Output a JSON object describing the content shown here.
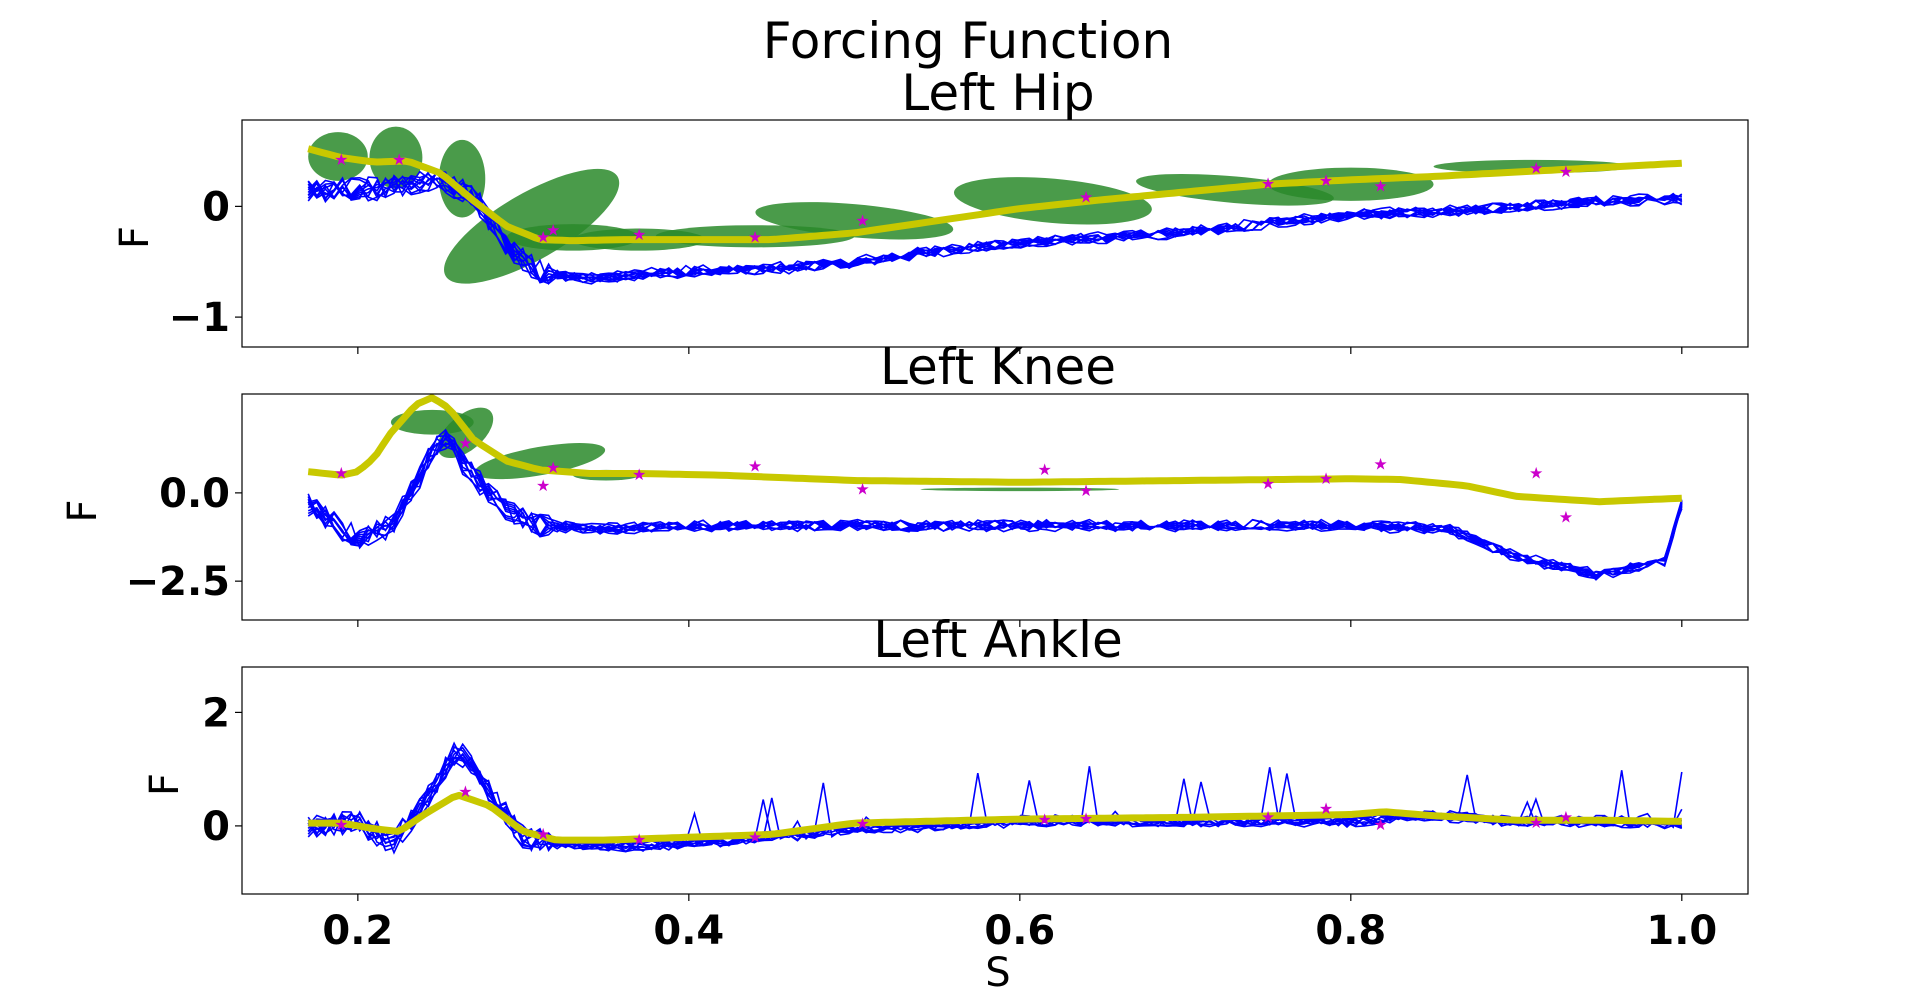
{
  "figure_title": "Forcing Function",
  "chart_data": [
    {
      "type": "line",
      "title": "Left Hip",
      "ylabel": "F",
      "xlabel": "",
      "xlim": [
        0.13,
        1.04
      ],
      "ylim": [
        -1.27,
        0.78
      ],
      "yticks": [
        0,
        -1
      ],
      "ytick_labels": [
        "0",
        "−1"
      ],
      "xticks": [
        0.2,
        0.4,
        0.6,
        0.8,
        1.0
      ],
      "xtick_labels": [],
      "colors": {
        "demos": "#0000ff",
        "mean": "#c8c800",
        "stars": "#cc00cc",
        "ellipses": "#2a8a2a"
      },
      "mean_curve": {
        "x": [
          0.17,
          0.19,
          0.21,
          0.23,
          0.25,
          0.27,
          0.29,
          0.31,
          0.33,
          0.36,
          0.4,
          0.45,
          0.5,
          0.55,
          0.6,
          0.65,
          0.7,
          0.75,
          0.8,
          0.85,
          0.9,
          0.95,
          1.0
        ],
        "y": [
          0.52,
          0.44,
          0.4,
          0.41,
          0.3,
          0.05,
          -0.18,
          -0.3,
          -0.31,
          -0.3,
          -0.3,
          -0.3,
          -0.24,
          -0.13,
          -0.02,
          0.06,
          0.13,
          0.2,
          0.24,
          0.27,
          0.31,
          0.35,
          0.39
        ]
      },
      "demo_baseline": {
        "x": [
          0.17,
          0.2,
          0.23,
          0.25,
          0.27,
          0.29,
          0.31,
          0.34,
          0.38,
          0.42,
          0.46,
          0.5,
          0.55,
          0.6,
          0.65,
          0.7,
          0.75,
          0.8,
          0.85,
          0.9,
          0.95,
          1.0
        ],
        "y": [
          0.1,
          0.1,
          0.15,
          0.2,
          0.05,
          -0.4,
          -0.65,
          -0.7,
          -0.65,
          -0.62,
          -0.6,
          -0.55,
          -0.45,
          -0.38,
          -0.33,
          -0.28,
          -0.2,
          -0.12,
          -0.1,
          -0.05,
          0.0,
          0.02
        ]
      },
      "stars": [
        [
          0.19,
          0.42
        ],
        [
          0.225,
          0.42
        ],
        [
          0.312,
          -0.28
        ],
        [
          0.318,
          -0.22
        ],
        [
          0.37,
          -0.26
        ],
        [
          0.44,
          -0.28
        ],
        [
          0.505,
          -0.13
        ],
        [
          0.64,
          0.08
        ],
        [
          0.75,
          0.2
        ],
        [
          0.785,
          0.23
        ],
        [
          0.818,
          0.18
        ],
        [
          0.912,
          0.34
        ],
        [
          0.93,
          0.31
        ]
      ],
      "ellipses": [
        [
          0.188,
          0.45,
          0.018,
          0.22,
          0
        ],
        [
          0.223,
          0.44,
          0.016,
          0.28,
          0
        ],
        [
          0.263,
          0.25,
          0.014,
          0.35,
          0
        ],
        [
          0.305,
          -0.18,
          0.06,
          0.3,
          -30
        ],
        [
          0.33,
          -0.28,
          0.04,
          0.12,
          0
        ],
        [
          0.37,
          -0.3,
          0.04,
          0.1,
          0
        ],
        [
          0.44,
          -0.27,
          0.06,
          0.1,
          0
        ],
        [
          0.5,
          -0.13,
          0.06,
          0.15,
          5
        ],
        [
          0.62,
          0.05,
          0.06,
          0.2,
          5
        ],
        [
          0.73,
          0.15,
          0.06,
          0.12,
          5
        ],
        [
          0.8,
          0.2,
          0.05,
          0.15,
          0
        ],
        [
          0.91,
          0.36,
          0.06,
          0.06,
          0
        ]
      ]
    },
    {
      "type": "line",
      "title": "Left Knee",
      "ylabel": "F",
      "xlabel": "",
      "xlim": [
        0.13,
        1.04
      ],
      "ylim": [
        -3.6,
        2.8
      ],
      "yticks": [
        0,
        -2.5
      ],
      "ytick_labels": [
        "0.0",
        "−2.5"
      ],
      "xticks": [
        0.2,
        0.4,
        0.6,
        0.8,
        1.0
      ],
      "xtick_labels": [],
      "colors": {
        "demos": "#0000ff",
        "mean": "#c8c800",
        "stars": "#cc00cc",
        "ellipses": "#2a8a2a"
      },
      "mean_curve": {
        "x": [
          0.17,
          0.19,
          0.2,
          0.21,
          0.22,
          0.235,
          0.245,
          0.255,
          0.27,
          0.29,
          0.31,
          0.34,
          0.37,
          0.42,
          0.5,
          0.6,
          0.7,
          0.8,
          0.83,
          0.87,
          0.9,
          0.95,
          1.0
        ],
        "y": [
          0.6,
          0.5,
          0.6,
          1.0,
          1.7,
          2.5,
          2.7,
          2.4,
          1.5,
          0.9,
          0.65,
          0.55,
          0.55,
          0.5,
          0.35,
          0.3,
          0.35,
          0.4,
          0.38,
          0.2,
          -0.1,
          -0.25,
          -0.15
        ]
      },
      "demo_baseline": {
        "x": [
          0.17,
          0.2,
          0.22,
          0.24,
          0.25,
          0.27,
          0.29,
          0.31,
          0.35,
          0.4,
          0.5,
          0.6,
          0.7,
          0.8,
          0.86,
          0.9,
          0.95,
          0.99,
          1.0
        ],
        "y": [
          0.0,
          -1.0,
          -0.6,
          1.0,
          2.0,
          0.8,
          -0.2,
          -0.6,
          -0.7,
          -0.6,
          -0.6,
          -0.6,
          -0.6,
          -0.6,
          -0.7,
          -1.5,
          -2.0,
          -1.6,
          0.0
        ]
      },
      "stars": [
        [
          0.19,
          0.55
        ],
        [
          0.265,
          1.4
        ],
        [
          0.312,
          0.2
        ],
        [
          0.318,
          0.7
        ],
        [
          0.37,
          0.5
        ],
        [
          0.44,
          0.75
        ],
        [
          0.505,
          0.1
        ],
        [
          0.615,
          0.65
        ],
        [
          0.64,
          0.05
        ],
        [
          0.75,
          0.25
        ],
        [
          0.785,
          0.4
        ],
        [
          0.818,
          0.8
        ],
        [
          0.912,
          0.55
        ],
        [
          0.93,
          -0.7
        ]
      ],
      "ellipses": [
        [
          0.245,
          2.0,
          0.025,
          0.35,
          0
        ],
        [
          0.265,
          1.7,
          0.02,
          0.5,
          -40
        ],
        [
          0.31,
          0.9,
          0.04,
          0.4,
          -10
        ],
        [
          0.35,
          0.5,
          0.02,
          0.15,
          0
        ],
        [
          0.6,
          0.1,
          0.06,
          0.05,
          0
        ]
      ]
    },
    {
      "type": "line",
      "title": "Left Ankle",
      "ylabel": "F",
      "xlabel": "S",
      "xlim": [
        0.13,
        1.04
      ],
      "ylim": [
        -1.2,
        2.8
      ],
      "yticks": [
        2,
        0
      ],
      "ytick_labels": [
        "2",
        "0"
      ],
      "xticks": [
        0.2,
        0.4,
        0.6,
        0.8,
        1.0
      ],
      "xtick_labels": [
        "0.2",
        "0.4",
        "0.6",
        "0.8",
        "1.0"
      ],
      "colors": {
        "demos": "#0000ff",
        "mean": "#c8c800",
        "stars": "#cc00cc",
        "ellipses": "#2a8a2a"
      },
      "mean_curve": {
        "x": [
          0.17,
          0.19,
          0.21,
          0.225,
          0.24,
          0.26,
          0.28,
          0.3,
          0.32,
          0.35,
          0.4,
          0.45,
          0.5,
          0.6,
          0.7,
          0.8,
          0.82,
          0.85,
          0.9,
          0.95,
          1.0
        ],
        "y": [
          0.05,
          0.05,
          -0.05,
          -0.1,
          0.2,
          0.55,
          0.35,
          -0.1,
          -0.25,
          -0.25,
          -0.2,
          -0.15,
          0.05,
          0.12,
          0.15,
          0.2,
          0.25,
          0.18,
          0.1,
          0.1,
          0.08
        ]
      },
      "demo_baseline": {
        "x": [
          0.17,
          0.2,
          0.22,
          0.24,
          0.26,
          0.28,
          0.3,
          0.32,
          0.36,
          0.4,
          0.5,
          0.6,
          0.7,
          0.8,
          0.85,
          0.9,
          0.95,
          1.0
        ],
        "y": [
          0.0,
          0.1,
          -0.3,
          0.4,
          1.4,
          0.6,
          -0.2,
          -0.3,
          -0.35,
          -0.3,
          -0.05,
          0.1,
          0.1,
          0.1,
          0.2,
          0.1,
          0.1,
          0.05
        ]
      },
      "stars": [
        [
          0.19,
          0.02
        ],
        [
          0.265,
          0.6
        ],
        [
          0.312,
          -0.15
        ],
        [
          0.37,
          -0.25
        ],
        [
          0.44,
          -0.2
        ],
        [
          0.505,
          0.03
        ],
        [
          0.615,
          0.1
        ],
        [
          0.64,
          0.12
        ],
        [
          0.75,
          0.15
        ],
        [
          0.785,
          0.3
        ],
        [
          0.818,
          0.02
        ],
        [
          0.912,
          0.05
        ],
        [
          0.93,
          0.15
        ]
      ],
      "ellipses": []
    }
  ]
}
